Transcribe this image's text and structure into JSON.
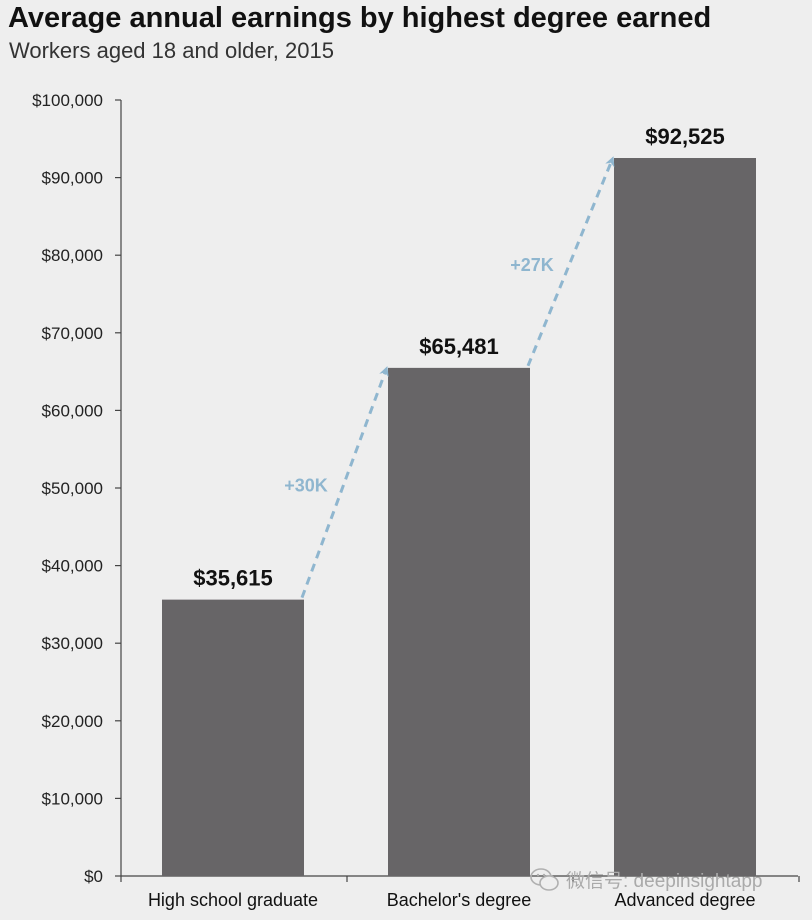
{
  "chart_data": {
    "type": "bar",
    "title": "Average annual earnings by highest degree earned",
    "subtitle": "Workers aged 18 and older, 2015",
    "categories": [
      "High school graduate",
      "Bachelor's degree",
      "Advanced degree"
    ],
    "values": [
      35615,
      65481,
      92525
    ],
    "value_labels": [
      "$35,615",
      "$65,481",
      "$92,525"
    ],
    "ylim": [
      0,
      100000
    ],
    "yticks": [
      0,
      10000,
      20000,
      30000,
      40000,
      50000,
      60000,
      70000,
      80000,
      90000,
      100000
    ],
    "ytick_labels": [
      "$0",
      "$10,000",
      "$20,000",
      "$30,000",
      "$40,000",
      "$50,000",
      "$60,000",
      "$70,000",
      "$80,000",
      "$90,000",
      "$100,000"
    ],
    "annotations": [
      {
        "from": "High school graduate",
        "to": "Bachelor's degree",
        "text": "+30K"
      },
      {
        "from": "Bachelor's degree",
        "to": "Advanced degree",
        "text": "+27K"
      }
    ],
    "colors": {
      "bar": "#676567",
      "arrow": "#8fb6cf",
      "background": "#eeeeee"
    },
    "grid": false
  },
  "watermark": {
    "text": "微信号: deepinsightapp",
    "icon": "wechat-icon"
  }
}
